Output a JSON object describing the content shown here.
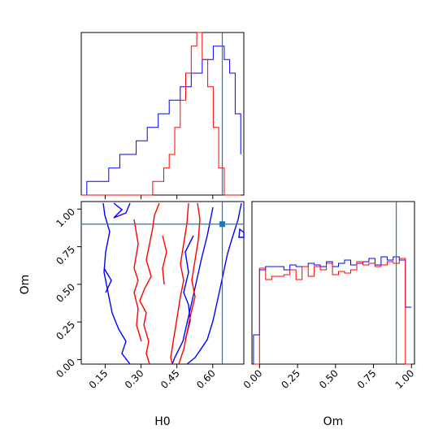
{
  "chart_data": {
    "type": "corner",
    "params": [
      "H0",
      "Om"
    ],
    "truth": {
      "H0": 0.64,
      "Om": 0.9
    },
    "colors": {
      "blue": "#0000ff",
      "red": "#ff0000",
      "truth": "#1f77b4"
    },
    "panels": {
      "h0_hist": {
        "type": "step-histogram",
        "xlim": [
          0.05,
          0.73
        ],
        "bins": [
          0.05,
          0.073,
          0.096,
          0.119,
          0.142,
          0.165,
          0.188,
          0.211,
          0.234,
          0.257,
          0.28,
          0.303,
          0.326,
          0.349,
          0.372,
          0.395,
          0.418,
          0.441,
          0.464,
          0.487,
          0.51,
          0.533,
          0.556,
          0.579,
          0.602,
          0.625,
          0.648,
          0.671,
          0.694,
          0.717
        ],
        "series": [
          {
            "color": "blue",
            "counts": [
              0,
              1,
              1,
              1,
              1,
              2,
              2,
              3,
              3,
              3,
              4,
              4,
              5,
              5,
              6,
              6,
              7,
              7,
              8,
              8,
              9,
              9,
              10,
              10,
              11,
              11,
              10,
              9,
              6,
              3
            ]
          },
          {
            "color": "red",
            "counts": [
              0,
              0,
              0,
              0,
              0,
              0,
              0,
              0,
              0,
              0,
              0,
              0,
              0,
              1,
              1,
              2,
              3,
              5,
              7,
              9,
              11,
              12,
              10,
              8,
              5,
              2,
              0,
              0,
              0,
              0
            ]
          }
        ],
        "ylim": [
          0,
          12
        ]
      },
      "om_hist": {
        "type": "step-histogram",
        "xlim": [
          -0.05,
          1.02
        ],
        "xticks": [
          "0.00",
          "0.25",
          "0.50",
          "0.75",
          "1.00"
        ],
        "xlabel": "Om",
        "ylim": [
          0,
          1.0
        ],
        "series": [
          {
            "color": "blue",
            "x": [
              -0.04,
              0.0,
              0.04,
              0.08,
              0.12,
              0.16,
              0.2,
              0.24,
              0.28,
              0.32,
              0.36,
              0.4,
              0.44,
              0.48,
              0.52,
              0.56,
              0.6,
              0.64,
              0.68,
              0.72,
              0.76,
              0.8,
              0.84,
              0.88,
              0.92,
              0.96,
              1.0
            ],
            "y": [
              0.18,
              0.58,
              0.6,
              0.6,
              0.6,
              0.58,
              0.61,
              0.6,
              0.6,
              0.62,
              0.61,
              0.6,
              0.63,
              0.6,
              0.62,
              0.64,
              0.61,
              0.62,
              0.63,
              0.65,
              0.61,
              0.66,
              0.64,
              0.66,
              0.64,
              0.35
            ]
          },
          {
            "color": "red",
            "x": [
              -0.04,
              0.0,
              0.04,
              0.08,
              0.12,
              0.16,
              0.2,
              0.24,
              0.28,
              0.32,
              0.36,
              0.4,
              0.44,
              0.48,
              0.52,
              0.56,
              0.6,
              0.64,
              0.68,
              0.72,
              0.76,
              0.8,
              0.84,
              0.88,
              0.92,
              0.96,
              1.0
            ],
            "y": [
              0.0,
              0.59,
              0.52,
              0.54,
              0.54,
              0.55,
              0.58,
              0.52,
              0.6,
              0.54,
              0.6,
              0.58,
              0.62,
              0.55,
              0.57,
              0.56,
              0.58,
              0.63,
              0.61,
              0.62,
              0.6,
              0.61,
              0.63,
              0.62,
              0.65,
              0.0
            ]
          }
        ]
      },
      "joint": {
        "type": "contour",
        "xlim": [
          0.05,
          0.73
        ],
        "ylim": [
          -0.03,
          1.05
        ],
        "xticks": [
          "0.15",
          "0.30",
          "0.45",
          "0.60"
        ],
        "yticks": [
          "0.00",
          "0.25",
          "0.50",
          "0.75",
          "1.00"
        ],
        "xlabel": "H0",
        "ylabel": "Om"
      }
    }
  }
}
